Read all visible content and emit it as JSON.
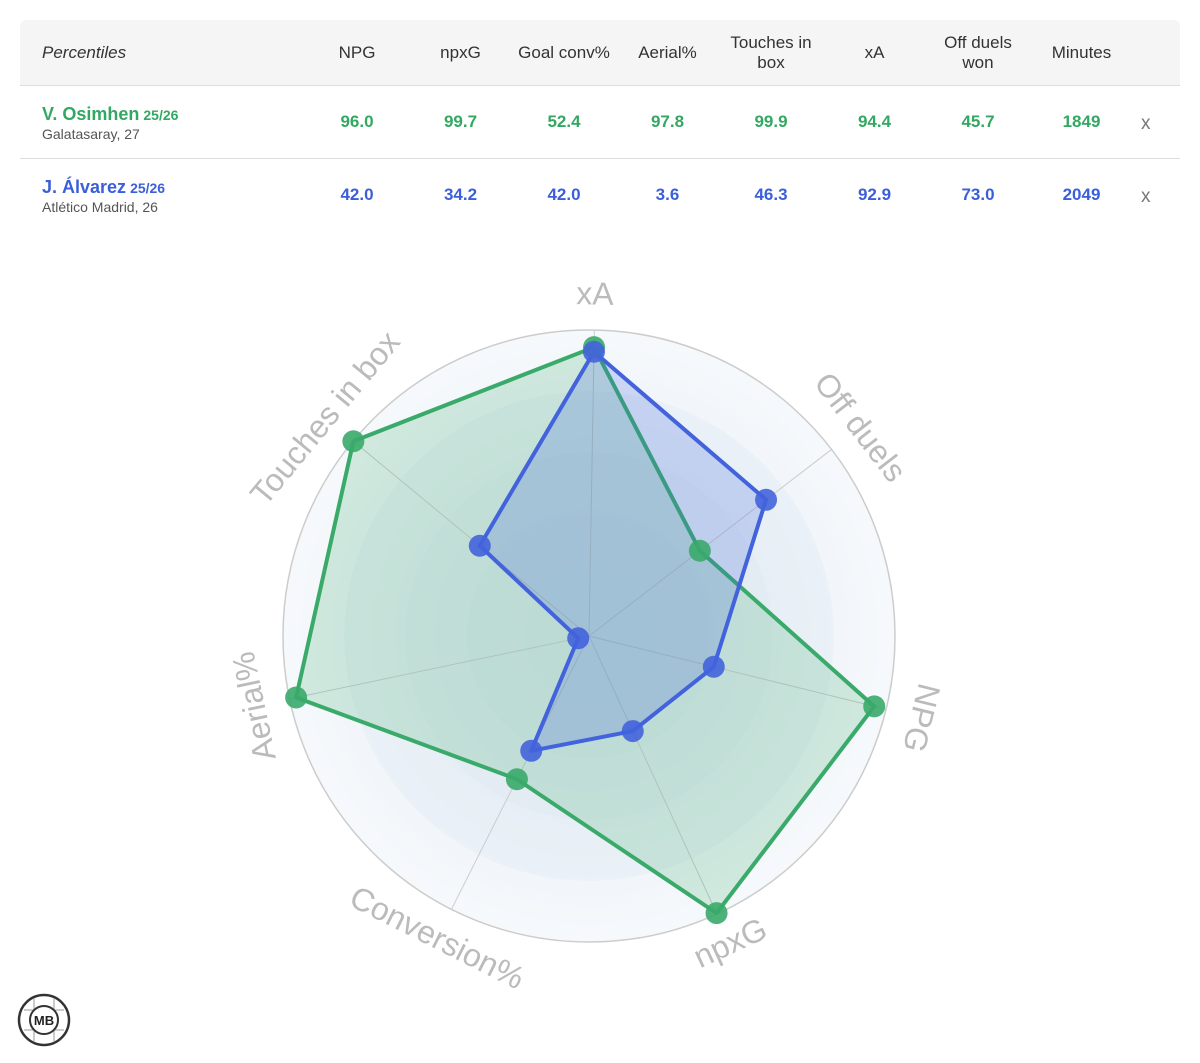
{
  "table": {
    "header": [
      "Percentiles",
      "NPG",
      "npxG",
      "Goal conv%",
      "Aerial%",
      "Touches in box",
      "xA",
      "Off duels won",
      "Minutes"
    ],
    "rows": [
      {
        "name": "V. Osimhen",
        "season": "25/26",
        "club": "Galatasaray, 27",
        "color": "#33a862",
        "cells": [
          "96.0",
          "99.7",
          "52.4",
          "97.8",
          "99.9",
          "94.4",
          "45.7",
          "1849"
        ],
        "remove": "x"
      },
      {
        "name": "J. Álvarez",
        "season": "25/26",
        "club": "Atlético Madrid, 26",
        "color": "#3b5fd9",
        "cells": [
          "42.0",
          "34.2",
          "42.0",
          "3.6",
          "46.3",
          "92.9",
          "73.0",
          "2049"
        ],
        "remove": "x"
      }
    ]
  },
  "chart_data": {
    "type": "radar",
    "categories": [
      "xA",
      "Off duels",
      "NPG",
      "npxG",
      "Conversion%",
      "Aerial%",
      "Touches in box"
    ],
    "rlim": [
      0,
      100
    ],
    "series": [
      {
        "name": "V. Osimhen",
        "color": "#3aaa6a",
        "values": [
          94.4,
          45.7,
          96.0,
          99.7,
          52.4,
          97.8,
          99.9
        ]
      },
      {
        "name": "J. Álvarez",
        "color": "#4263dc",
        "values": [
          92.9,
          73.0,
          42.0,
          34.2,
          42.0,
          3.6,
          46.3
        ]
      }
    ]
  },
  "logo": "MB"
}
